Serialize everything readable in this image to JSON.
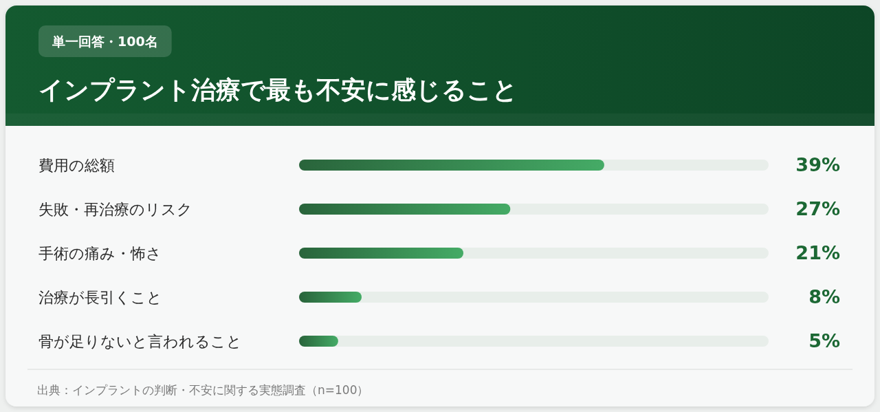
{
  "chart_data": {
    "type": "bar",
    "orientation": "horizontal",
    "title": "インプラント治療で最も不安に感じること",
    "subtitle": "単一回答・100名",
    "categories": [
      "費用の総額",
      "失敗・再治療のリスク",
      "手術の痛み・怖さ",
      "治療が長引くこと",
      "骨が足りないと言われること"
    ],
    "values": [
      39,
      27,
      21,
      8,
      5
    ],
    "value_labels": [
      "39%",
      "27%",
      "21%",
      "8%",
      "5%"
    ],
    "color": "#3a8f55",
    "xlim": [
      0,
      60
    ],
    "tick_labels": "y",
    "annotations": [
      "出典：インプラントの判断・不安に関する実態調査（n=100）"
    ]
  }
}
